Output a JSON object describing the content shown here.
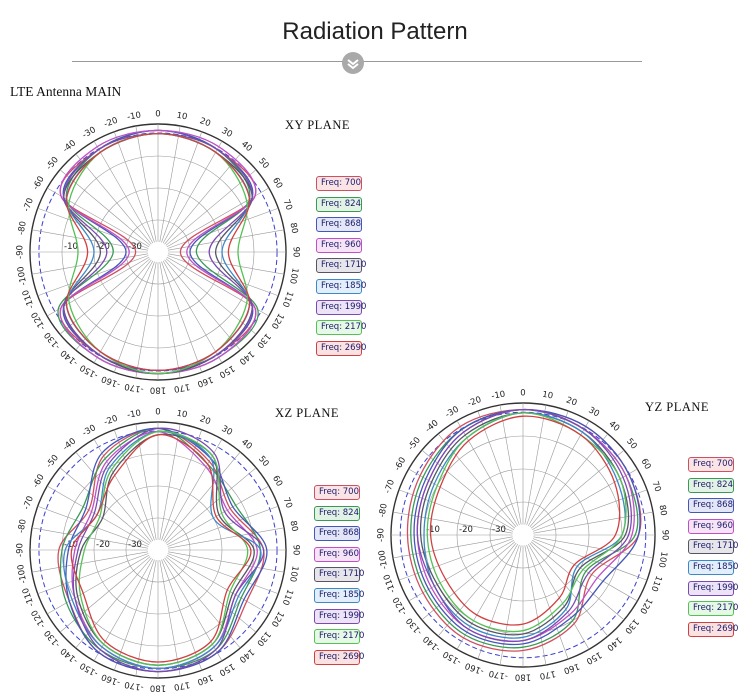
{
  "header": {
    "title": "Radiation Pattern",
    "subtitle": "LTE Antenna MAIN"
  },
  "legend": [
    {
      "label": "Freq: 700",
      "color": "#d05060",
      "fill": "#fbe4e6"
    },
    {
      "label": "Freq: 824",
      "color": "#3a9a55",
      "fill": "#e2f3e6"
    },
    {
      "label": "Freq: 868",
      "color": "#4456b8",
      "fill": "#e3e6f6"
    },
    {
      "label": "Freq: 960",
      "color": "#c050c8",
      "fill": "#f6e3f6"
    },
    {
      "label": "Freq: 1710",
      "color": "#555566",
      "fill": "#e6e6ea"
    },
    {
      "label": "Freq: 1850",
      "color": "#3d88c8",
      "fill": "#e2effa"
    },
    {
      "label": "Freq: 1990",
      "color": "#7a4ab0",
      "fill": "#ece3f6"
    },
    {
      "label": "Freq: 2170",
      "color": "#55c055",
      "fill": "#e6f8e6"
    },
    {
      "label": "Freq: 2690",
      "color": "#d04040",
      "fill": "#fbe2e2"
    }
  ],
  "polar_axis": {
    "angle_labels": [
      "0",
      "10",
      "20",
      "30",
      "40",
      "50",
      "60",
      "70",
      "80",
      "90",
      "100",
      "110",
      "120",
      "130",
      "140",
      "150",
      "160",
      "170",
      "180",
      "-170",
      "-160",
      "-150",
      "-140",
      "-130",
      "-120",
      "-110",
      "-100",
      "-90",
      "-80",
      "-70",
      "-60",
      "-50",
      "-40",
      "-30",
      "-20",
      "-10"
    ],
    "radial_labels": [
      "-10",
      "-20",
      "-30"
    ]
  },
  "chart_data": [
    {
      "type": "polar",
      "title": "XY PLANE",
      "angles_deg": [
        0,
        30,
        60,
        90,
        120,
        150,
        180,
        210,
        240,
        270,
        300,
        330
      ],
      "r_range_db": [
        -40,
        0
      ],
      "series": [
        {
          "name": "Freq: 700",
          "values": [
            -2,
            -3,
            -5,
            -33,
            -5,
            -3,
            -2,
            -3,
            -5,
            -33,
            -5,
            -3
          ]
        },
        {
          "name": "Freq: 824",
          "values": [
            -2,
            -3,
            -7,
            -28,
            -4,
            -2,
            -2,
            -2,
            -4,
            -26,
            -7,
            -3
          ]
        },
        {
          "name": "Freq: 868",
          "values": [
            -2,
            -3,
            -6,
            -30,
            -6,
            -3,
            -2,
            -3,
            -6,
            -30,
            -6,
            -3
          ]
        },
        {
          "name": "Freq: 960",
          "values": [
            -2,
            -2,
            -5,
            -31,
            -5,
            -2,
            -2,
            -2,
            -5,
            -31,
            -5,
            -2
          ]
        },
        {
          "name": "Freq: 1710",
          "values": [
            -3,
            -4,
            -6,
            -22,
            -6,
            -3,
            -2,
            -3,
            -6,
            -22,
            -6,
            -4
          ]
        },
        {
          "name": "Freq: 1850",
          "values": [
            -3,
            -4,
            -7,
            -20,
            -7,
            -4,
            -3,
            -4,
            -7,
            -20,
            -7,
            -4
          ]
        },
        {
          "name": "Freq: 1990",
          "values": [
            -3,
            -3,
            -6,
            -24,
            -6,
            -3,
            -3,
            -3,
            -6,
            -24,
            -6,
            -3
          ]
        },
        {
          "name": "Freq: 2170",
          "values": [
            -3,
            -4,
            -8,
            -15,
            -8,
            -4,
            -2,
            -4,
            -8,
            -15,
            -8,
            -4
          ]
        },
        {
          "name": "Freq: 2690",
          "values": [
            -3,
            -4,
            -7,
            -18,
            -7,
            -4,
            -3,
            -4,
            -7,
            -18,
            -7,
            -4
          ]
        }
      ]
    },
    {
      "type": "polar",
      "title": "XZ PLANE",
      "angles_deg": [
        0,
        30,
        60,
        90,
        120,
        150,
        180,
        210,
        240,
        270,
        300,
        330
      ],
      "r_range_db": [
        -40,
        0
      ],
      "series": [
        {
          "name": "Freq: 700",
          "values": [
            -2,
            -8,
            -14,
            -7,
            -8,
            -3,
            -2,
            -3,
            -8,
            -9,
            -15,
            -6
          ]
        },
        {
          "name": "Freq: 824",
          "values": [
            -2,
            -9,
            -12,
            -8,
            -10,
            -4,
            -3,
            -4,
            -7,
            -10,
            -13,
            -7
          ]
        },
        {
          "name": "Freq: 868",
          "values": [
            -2,
            -7,
            -13,
            -6,
            -9,
            -3,
            -2,
            -3,
            -8,
            -12,
            -14,
            -5
          ]
        },
        {
          "name": "Freq: 960",
          "values": [
            -3,
            -10,
            -15,
            -9,
            -12,
            -5,
            -3,
            -5,
            -10,
            -14,
            -16,
            -8
          ]
        },
        {
          "name": "Freq: 1710",
          "values": [
            -4,
            -6,
            -18,
            -10,
            -13,
            -6,
            -4,
            -6,
            -11,
            -16,
            -20,
            -12
          ]
        },
        {
          "name": "Freq: 1850",
          "values": [
            -3,
            -7,
            -20,
            -8,
            -11,
            -5,
            -3,
            -5,
            -9,
            -11,
            -18,
            -10
          ]
        },
        {
          "name": "Freq: 1990",
          "values": [
            -2,
            -5,
            -16,
            -7,
            -12,
            -4,
            -2,
            -4,
            -10,
            -15,
            -17,
            -9
          ]
        },
        {
          "name": "Freq: 2170",
          "values": [
            -3,
            -6,
            -17,
            -12,
            -14,
            -6,
            -4,
            -6,
            -12,
            -17,
            -19,
            -11
          ]
        },
        {
          "name": "Freq: 2690",
          "values": [
            -4,
            -9,
            -19,
            -11,
            -15,
            -7,
            -5,
            -7,
            -13,
            -13,
            -18,
            -13
          ]
        }
      ]
    },
    {
      "type": "polar",
      "title": "YZ PLANE",
      "angles_deg": [
        0,
        30,
        60,
        90,
        120,
        150,
        180,
        210,
        240,
        270,
        300,
        330
      ],
      "r_range_db": [
        -40,
        0
      ],
      "series": [
        {
          "name": "Freq: 700",
          "values": [
            -2,
            -2,
            -3,
            -5,
            -16,
            -9,
            -5,
            -4,
            -5,
            -5,
            -4,
            -2
          ]
        },
        {
          "name": "Freq: 824",
          "values": [
            -2,
            -3,
            -4,
            -6,
            -18,
            -10,
            -6,
            -5,
            -6,
            -6,
            -5,
            -3
          ]
        },
        {
          "name": "Freq: 868",
          "values": [
            -2,
            -2,
            -3,
            -5,
            -12,
            -11,
            -7,
            -6,
            -7,
            -7,
            -6,
            -3
          ]
        },
        {
          "name": "Freq: 960",
          "values": [
            -2,
            -3,
            -4,
            -7,
            -14,
            -12,
            -8,
            -7,
            -8,
            -8,
            -7,
            -4
          ]
        },
        {
          "name": "Freq: 1710",
          "values": [
            -3,
            -4,
            -6,
            -9,
            -20,
            -15,
            -10,
            -9,
            -10,
            -9,
            -8,
            -5
          ]
        },
        {
          "name": "Freq: 1850",
          "values": [
            -3,
            -4,
            -7,
            -10,
            -21,
            -14,
            -9,
            -8,
            -9,
            -10,
            -9,
            -6
          ]
        },
        {
          "name": "Freq: 1990",
          "values": [
            -2,
            -3,
            -5,
            -8,
            -17,
            -13,
            -8,
            -7,
            -9,
            -8,
            -7,
            -4
          ]
        },
        {
          "name": "Freq: 2170",
          "values": [
            -3,
            -5,
            -6,
            -10,
            -19,
            -16,
            -11,
            -10,
            -11,
            -11,
            -10,
            -6
          ]
        },
        {
          "name": "Freq: 2690",
          "values": [
            -4,
            -5,
            -8,
            -12,
            -22,
            -18,
            -13,
            -12,
            -13,
            -12,
            -11,
            -7
          ]
        }
      ]
    }
  ]
}
